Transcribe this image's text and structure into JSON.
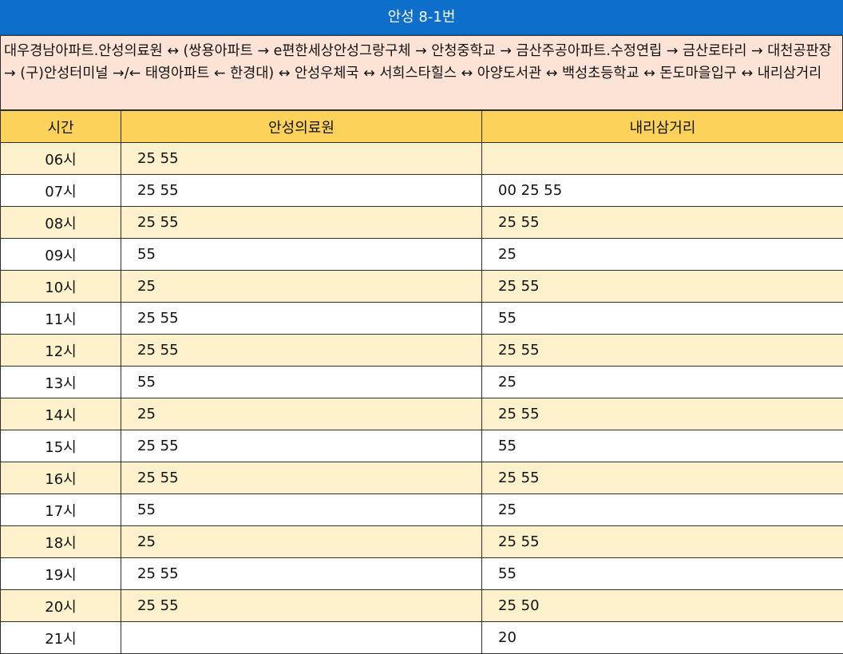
{
  "title": "안성 8-1번",
  "route_description": "대우경남아파트.안성의료원 ↔ (쌍용아파트 → e편한세상안성그랑구체 → 안청중학교 → 금산주공아파트.수정연립 → 금산로타리 → 대천공판장 → (구)안성터미널 →/← 태영아파트 ← 한경대) ↔ 안성우체국 ↔ 서희스타힐스 ↔ 아양도서관 ↔ 백성초등학교 ↔ 돈도마을입구 ↔ 내리삼거리",
  "columns": [
    "시간",
    "안성의료원",
    "내리삼거리"
  ],
  "rows": [
    {
      "hour": "06시",
      "a": "25 55",
      "b": ""
    },
    {
      "hour": "07시",
      "a": "25 55",
      "b": "00 25 55"
    },
    {
      "hour": "08시",
      "a": "25 55",
      "b": "25 55"
    },
    {
      "hour": "09시",
      "a": "55",
      "b": "25"
    },
    {
      "hour": "10시",
      "a": "25",
      "b": "25 55"
    },
    {
      "hour": "11시",
      "a": "25 55",
      "b": "55"
    },
    {
      "hour": "12시",
      "a": "25 55",
      "b": "25 55"
    },
    {
      "hour": "13시",
      "a": "55",
      "b": "25"
    },
    {
      "hour": "14시",
      "a": "25",
      "b": "25 55"
    },
    {
      "hour": "15시",
      "a": "25 55",
      "b": "55"
    },
    {
      "hour": "16시",
      "a": "25 55",
      "b": "25 55"
    },
    {
      "hour": "17시",
      "a": "55",
      "b": "25"
    },
    {
      "hour": "18시",
      "a": "25",
      "b": "25 55"
    },
    {
      "hour": "19시",
      "a": "25 55",
      "b": "55"
    },
    {
      "hour": "20시",
      "a": "25 55",
      "b": "25 50"
    },
    {
      "hour": "21시",
      "a": "",
      "b": "20"
    }
  ],
  "colors": {
    "title_bg": "#0d6fc9",
    "route_bg": "#fde3d6",
    "header_bg": "#fcd25a",
    "stripe_bg": "#fdf1cc"
  }
}
